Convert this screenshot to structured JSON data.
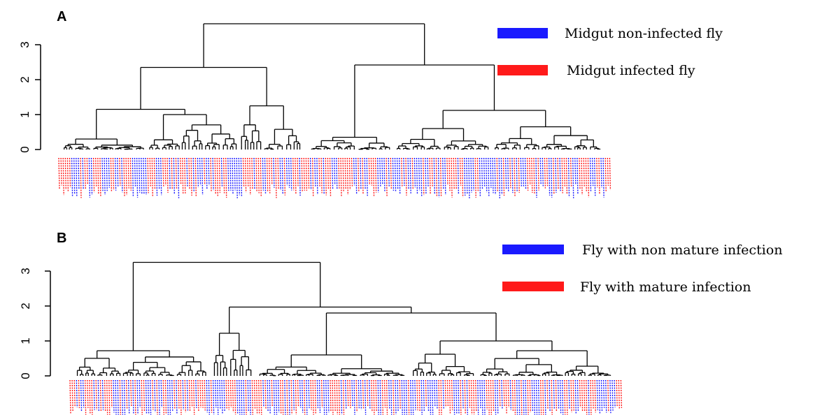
{
  "chart_data": [
    {
      "type": "dendrogram",
      "panel_label": "A",
      "ylim": [
        0,
        3.6
      ],
      "yticks": [
        "0",
        "1",
        "2",
        "3"
      ],
      "root_height": 3.6,
      "major_merge_heights": [
        3.6,
        2.35,
        2.42,
        1.15,
        1.12,
        1.25,
        0.98,
        0.6,
        0.8
      ],
      "legend": [
        {
          "label": "Midgut non-infected fly",
          "color": "#1a1aff"
        },
        {
          "label": "Midgut infected fly",
          "color": "#ff1a1a"
        }
      ],
      "leaf_colors": [
        "#ff1a1a",
        "#1a1aff"
      ]
    },
    {
      "type": "dendrogram",
      "panel_label": "B",
      "ylim": [
        0,
        3.3
      ],
      "yticks": [
        "0",
        "1",
        "2",
        "3"
      ],
      "root_height": 3.25,
      "major_merge_heights": [
        3.25,
        1.97,
        1.8,
        1.22,
        1.0,
        0.72,
        0.7,
        0.6
      ],
      "legend": [
        {
          "label": "Fly with non mature infection",
          "color": "#1a1aff"
        },
        {
          "label": "Fly with mature infection",
          "color": "#ff1a1a"
        }
      ],
      "leaf_colors": [
        "#ff1a1a",
        "#1a1aff"
      ]
    }
  ]
}
